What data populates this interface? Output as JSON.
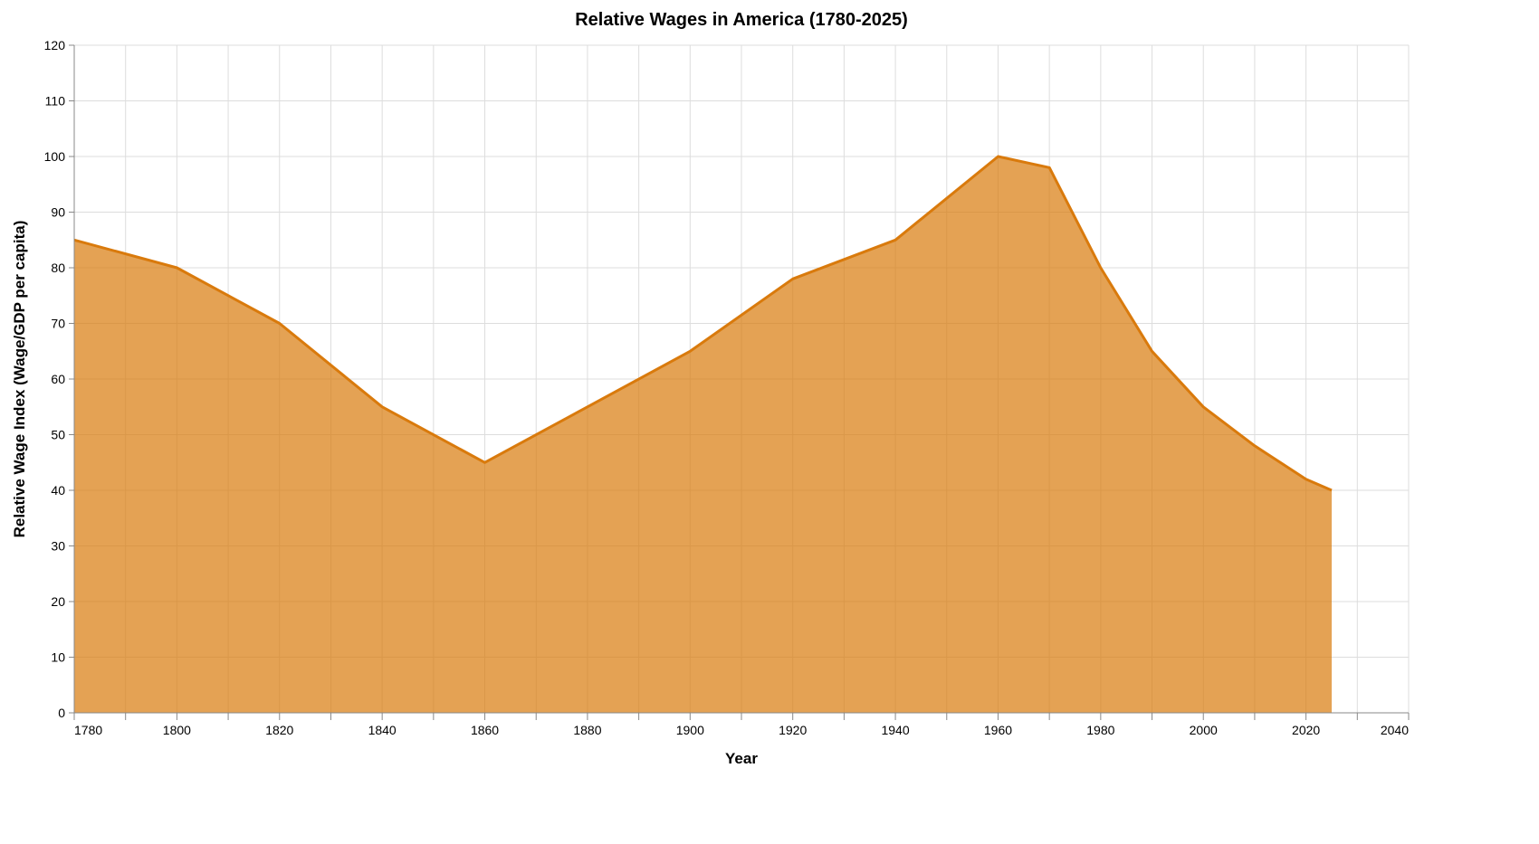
{
  "chart_data": {
    "type": "area",
    "title": "Relative Wages in America (1780-2025)",
    "xlabel": "Year",
    "ylabel": "Relative Wage Index (Wage/GDP per capita)",
    "xlim": [
      1780,
      2040
    ],
    "ylim": [
      0,
      120
    ],
    "x_ticks": [
      1780,
      1800,
      1820,
      1840,
      1860,
      1880,
      1900,
      1920,
      1940,
      1960,
      1980,
      2000,
      2020,
      2040
    ],
    "y_ticks": [
      0,
      10,
      20,
      30,
      40,
      50,
      60,
      70,
      80,
      90,
      100,
      110,
      120
    ],
    "grid": true,
    "x": [
      1780,
      1800,
      1820,
      1840,
      1860,
      1880,
      1900,
      1920,
      1940,
      1960,
      1970,
      1980,
      1990,
      2000,
      2010,
      2020,
      2025
    ],
    "values": [
      85,
      80,
      70,
      55,
      45,
      55,
      65,
      78,
      85,
      100,
      98,
      80,
      65,
      55,
      48,
      42,
      40
    ],
    "colors": {
      "line": "#d97a0c",
      "fill": "#d97a0c",
      "fill_opacity": 0.7,
      "grid": "#dddddd"
    }
  }
}
